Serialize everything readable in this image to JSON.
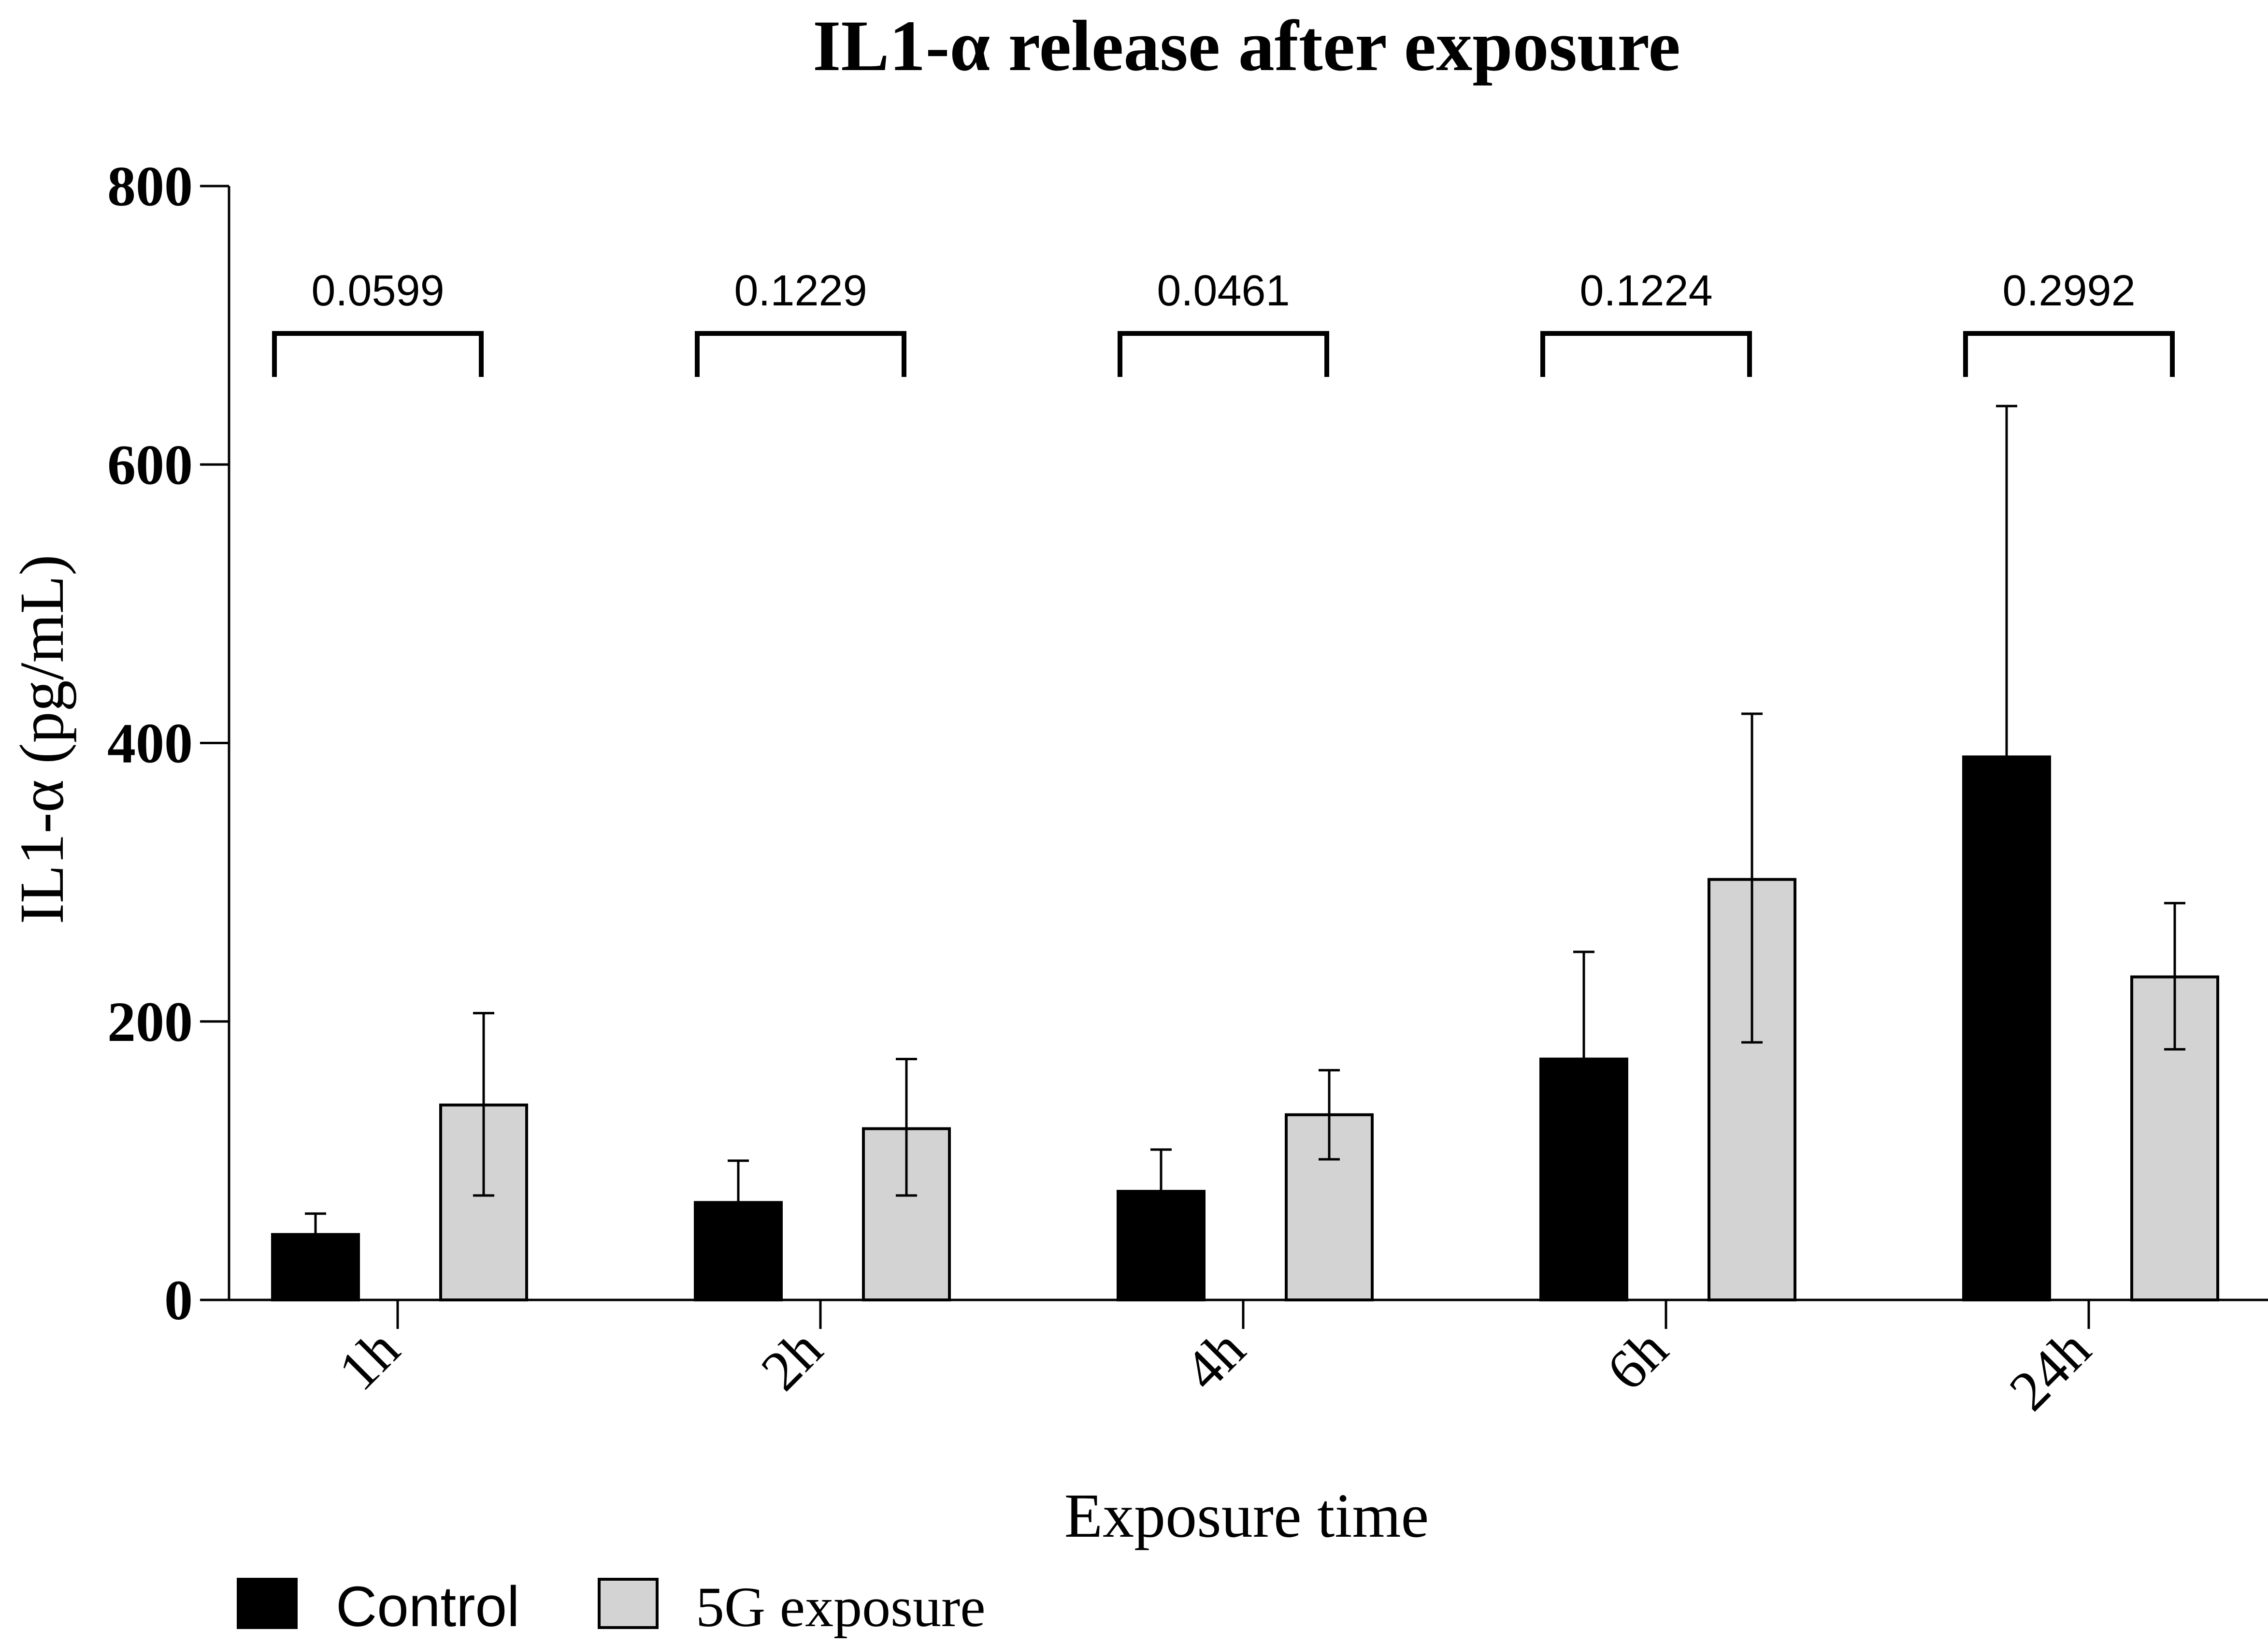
{
  "chart_data": {
    "type": "bar",
    "title": "IL1-α release after exposure",
    "xlabel": "Exposure time",
    "ylabel": "IL1-α (pg/mL)",
    "ylim": [
      0,
      800
    ],
    "yticks": [
      "0",
      "200",
      "400",
      "600",
      "800"
    ],
    "categories": [
      "1h",
      "2h",
      "4h",
      "6h",
      "24h"
    ],
    "series": [
      {
        "name": "Control",
        "color": "#000000",
        "values": [
          47,
          70,
          78,
          173,
          390
        ],
        "error_upper": [
          62,
          100,
          108,
          250,
          642
        ]
      },
      {
        "name": "5G exposure",
        "color": "#d3d3d3",
        "values": [
          140,
          123,
          133,
          302,
          232
        ],
        "error_upper": [
          206,
          173,
          165,
          421,
          285
        ],
        "error_lower": [
          75,
          75,
          101,
          185,
          180
        ]
      }
    ],
    "pvalues": [
      "0.0599",
      "0.1229",
      "0.0461",
      "0.1224",
      "0.2992"
    ],
    "legend_position": "bottom-left",
    "grid": false
  }
}
